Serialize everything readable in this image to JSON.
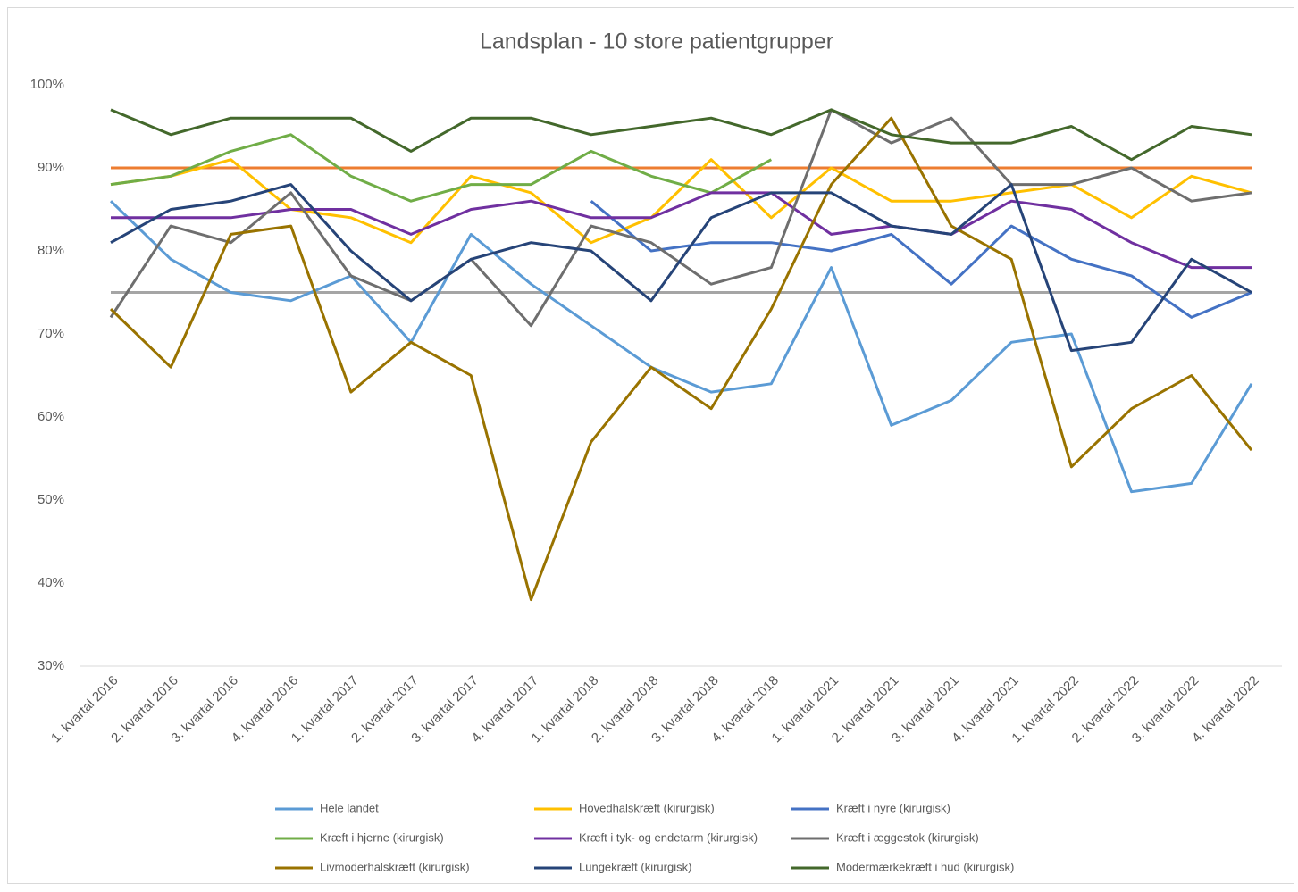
{
  "chart_data": {
    "type": "line",
    "title": "Landsplan - 10 store patientgrupper",
    "categories": [
      "1. kvartal 2016",
      "2. kvartal 2016",
      "3. kvartal 2016",
      "4. kvartal 2016",
      "1. kvartal 2017",
      "2. kvartal 2017",
      "3. kvartal 2017",
      "4. kvartal 2017",
      "1. kvartal 2018",
      "2. kvartal 2018",
      "3. kvartal 2018",
      "4. kvartal 2018",
      "1. kvartal 2021",
      "2. kvartal 2021",
      "3. kvartal 2021",
      "4. kvartal 2021",
      "1. kvartal 2022",
      "2. kvartal 2022",
      "3. kvartal 2022",
      "4. kvartal 2022"
    ],
    "series": [
      {
        "name": "Hele landet",
        "color": "#5b9bd5",
        "values": [
          86,
          79,
          75,
          74,
          77,
          69,
          82,
          76,
          71,
          66,
          63,
          64,
          78,
          59,
          62,
          69,
          70,
          51,
          52,
          64
        ]
      },
      {
        "name": "Hovedhalskræft (kirurgisk)",
        "color": "#ffc000",
        "values": [
          88,
          89,
          91,
          85,
          84,
          81,
          89,
          87,
          81,
          84,
          91,
          84,
          90,
          86,
          86,
          87,
          88,
          84,
          89,
          87
        ]
      },
      {
        "name": "Kræft i nyre (kirurgisk)",
        "color": "#4472c4",
        "values": [
          null,
          null,
          null,
          null,
          null,
          null,
          null,
          null,
          86,
          80,
          81,
          81,
          80,
          82,
          76,
          83,
          79,
          77,
          72,
          75
        ]
      },
      {
        "name": "Kræft i hjerne (kirurgisk)",
        "color": "#70ad47",
        "values": [
          88,
          89,
          92,
          94,
          89,
          86,
          88,
          88,
          92,
          89,
          87,
          91,
          null,
          null,
          null,
          null,
          null,
          null,
          null,
          null
        ]
      },
      {
        "name": "Kræft i tyk- og endetarm (kirurgisk)",
        "color": "#7030a0",
        "values": [
          84,
          84,
          84,
          85,
          85,
          82,
          85,
          86,
          84,
          84,
          87,
          87,
          82,
          83,
          82,
          86,
          85,
          81,
          78,
          78
        ]
      },
      {
        "name": "Kræft i æggestok (kirurgisk)",
        "color": "#6e6e6e",
        "values": [
          72,
          83,
          81,
          87,
          77,
          74,
          79,
          71,
          83,
          81,
          76,
          78,
          97,
          93,
          96,
          88,
          88,
          90,
          86,
          87
        ]
      },
      {
        "name": "Livmoderhalskræft (kirurgisk)",
        "color": "#997300",
        "values": [
          73,
          66,
          82,
          83,
          63,
          69,
          65,
          38,
          57,
          66,
          61,
          73,
          88,
          96,
          83,
          79,
          54,
          61,
          65,
          56
        ]
      },
      {
        "name": "Lungekræft (kirurgisk)",
        "color": "#264478",
        "values": [
          81,
          85,
          86,
          88,
          80,
          74,
          79,
          81,
          80,
          74,
          84,
          87,
          87,
          83,
          82,
          88,
          68,
          69,
          79,
          75
        ]
      },
      {
        "name": "Modermærkekræft i hud (kirurgisk)",
        "color": "#43682b",
        "values": [
          97,
          94,
          96,
          96,
          96,
          92,
          96,
          96,
          94,
          95,
          96,
          94,
          97,
          94,
          93,
          93,
          95,
          91,
          95,
          94
        ]
      }
    ],
    "reference_lines": [
      {
        "value": 90,
        "color": "#ed7d31"
      },
      {
        "value": 75,
        "color": "#a5a5a5"
      }
    ],
    "ylim": [
      30,
      100
    ],
    "yticks": [
      {
        "value": 30,
        "label": "30%"
      },
      {
        "value": 40,
        "label": "40%"
      },
      {
        "value": 50,
        "label": "50%"
      },
      {
        "value": 60,
        "label": "60%"
      },
      {
        "value": 70,
        "label": "70%"
      },
      {
        "value": 80,
        "label": "80%"
      },
      {
        "value": 90,
        "label": "90%"
      },
      {
        "value": 100,
        "label": "100%"
      }
    ],
    "grid": false,
    "legend": "bottom"
  }
}
